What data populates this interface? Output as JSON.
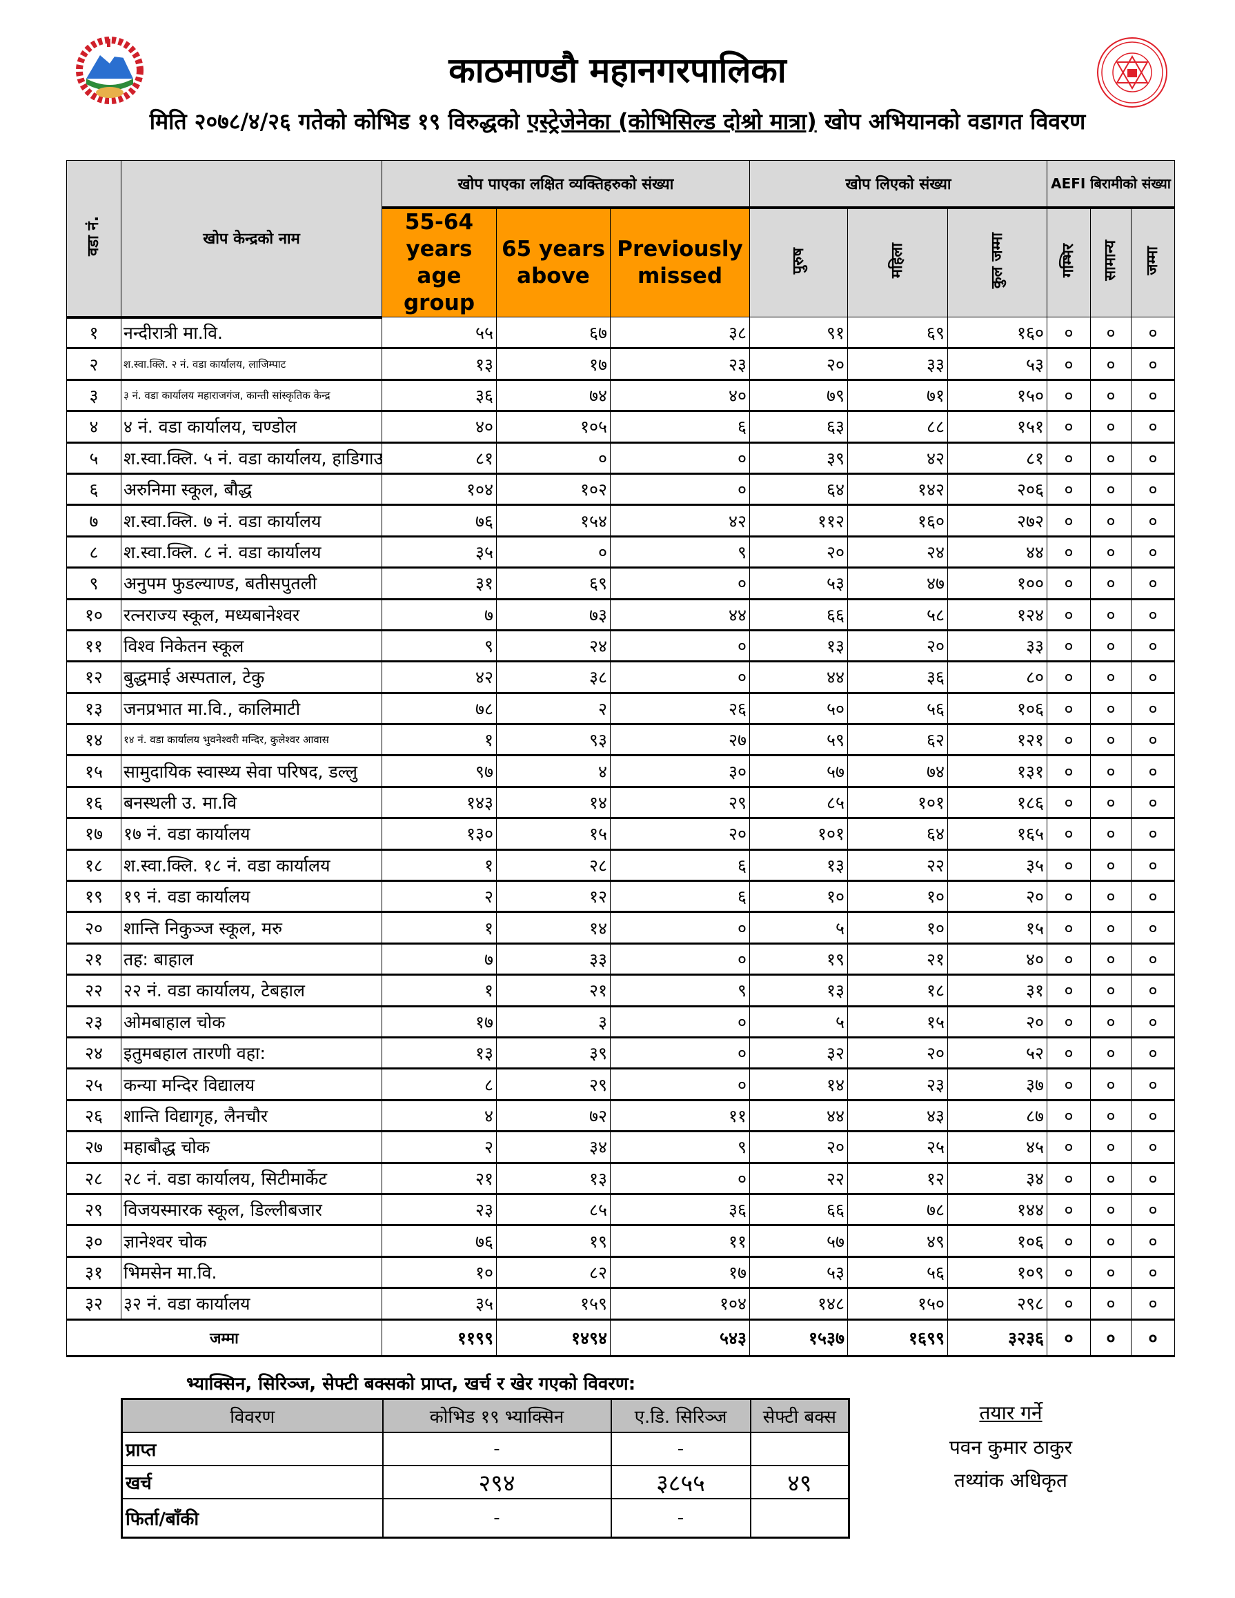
{
  "header": {
    "title": "काठमाण्डौ महानगरपालिका",
    "subtitle_prefix": "मिति २०७८/४/२६ गतेको कोभिड १९ विरुद्धको ",
    "subtitle_underlined": "एस्ट्रेजेनेका (कोभिसिल्ड दोश्रो मात्रा)",
    "subtitle_suffix": " खोप अभियानको वडागत विवरण",
    "logo_left": "Government of Nepal emblem",
    "logo_right": "Kathmandu Metropolitan City seal"
  },
  "colors": {
    "orange_header": "#ff9900",
    "grey_header": "#d9d9d9",
    "logo_red": "#e0202a"
  },
  "table": {
    "col_ward": "वडा नं.",
    "col_center": "खोप केन्द्रको नाम",
    "group_target": "खोप पाएका लक्षित व्यक्तिहरुको संख्या",
    "group_vaccinated": "खोप लिएको संख्या",
    "group_aefi": "AEFI बिरामीको संख्या",
    "target_cols": [
      "55-64 years age group",
      "65 years above",
      "Previously missed"
    ],
    "vacc_cols": [
      "पुरुष",
      "महिला",
      "कुल जम्मा"
    ],
    "aefi_cols": [
      "गम्भिर",
      "सामान्य",
      "जम्मा"
    ],
    "rows": [
      [
        "१",
        "नन्दीरात्री मा.वि.",
        "५५",
        "६७",
        "३८",
        "९१",
        "६९",
        "१६०",
        "०",
        "०",
        "०"
      ],
      [
        "२",
        "श.स्वा.क्लि. २ नं. वडा कार्यालय, लाजिम्पाट",
        "१३",
        "१७",
        "२३",
        "२०",
        "३३",
        "५३",
        "०",
        "०",
        "०"
      ],
      [
        "३",
        "३ नं. वडा कार्यालय महाराजगंज, कान्ती सांस्कृतिक केन्द्र",
        "३६",
        "७४",
        "४०",
        "७९",
        "७१",
        "१५०",
        "०",
        "०",
        "०"
      ],
      [
        "४",
        "४ नं. वडा कार्यालय, चण्डोल",
        "४०",
        "१०५",
        "६",
        "६३",
        "८८",
        "१५१",
        "०",
        "०",
        "०"
      ],
      [
        "५",
        "श.स्वा.क्लि. ५ नं. वडा कार्यालय, हाडिगाउ",
        "८१",
        "०",
        "०",
        "३९",
        "४२",
        "८१",
        "०",
        "०",
        "०"
      ],
      [
        "६",
        "अरुनिमा स्कूल, बौद्ध",
        "१०४",
        "१०२",
        "०",
        "६४",
        "१४२",
        "२०६",
        "०",
        "०",
        "०"
      ],
      [
        "७",
        "श.स्वा.क्लि. ७ नं. वडा कार्यालय",
        "७६",
        "१५४",
        "४२",
        "११२",
        "१६०",
        "२७२",
        "०",
        "०",
        "०"
      ],
      [
        "८",
        "श.स्वा.क्लि. ८ नं. वडा कार्यालय",
        "३५",
        "०",
        "९",
        "२०",
        "२४",
        "४४",
        "०",
        "०",
        "०"
      ],
      [
        "९",
        "अनुपम फुडल्याण्ड, बतीसपुतली",
        "३१",
        "६९",
        "०",
        "५३",
        "४७",
        "१००",
        "०",
        "०",
        "०"
      ],
      [
        "१०",
        "रत्नराज्य स्कूल, मध्यबानेश्वर",
        "७",
        "७३",
        "४४",
        "६६",
        "५८",
        "१२४",
        "०",
        "०",
        "०"
      ],
      [
        "११",
        "विश्व निकेतन स्कूल",
        "९",
        "२४",
        "०",
        "१३",
        "२०",
        "३३",
        "०",
        "०",
        "०"
      ],
      [
        "१२",
        "बुद्धमाई अस्पताल, टेकु",
        "४२",
        "३८",
        "०",
        "४४",
        "३६",
        "८०",
        "०",
        "०",
        "०"
      ],
      [
        "१३",
        "जनप्रभात मा.वि., कालिमाटी",
        "७८",
        "२",
        "२६",
        "५०",
        "५६",
        "१०६",
        "०",
        "०",
        "०"
      ],
      [
        "१४",
        "१४ नं. वडा कार्यालय भुवनेश्वरी मन्दिर, कुलेश्वर आवास",
        "१",
        "९३",
        "२७",
        "५९",
        "६२",
        "१२१",
        "०",
        "०",
        "०"
      ],
      [
        "१५",
        "सामुदायिक स्वास्थ्य सेवा परिषद, डल्लु",
        "९७",
        "४",
        "३०",
        "५७",
        "७४",
        "१३१",
        "०",
        "०",
        "०"
      ],
      [
        "१६",
        "बनस्थली उ. मा.वि",
        "१४३",
        "१४",
        "२९",
        "८५",
        "१०१",
        "१८६",
        "०",
        "०",
        "०"
      ],
      [
        "१७",
        "१७ नं. वडा कार्यालय",
        "१३०",
        "१५",
        "२०",
        "१०१",
        "६४",
        "१६५",
        "०",
        "०",
        "०"
      ],
      [
        "१८",
        "श.स्वा.क्लि. १८ नं. वडा कार्यालय",
        "१",
        "२८",
        "६",
        "१३",
        "२२",
        "३५",
        "०",
        "०",
        "०"
      ],
      [
        "१९",
        "१९ नं. वडा कार्यालय",
        "२",
        "१२",
        "६",
        "१०",
        "१०",
        "२०",
        "०",
        "०",
        "०"
      ],
      [
        "२०",
        "शान्ति निकुञ्ज स्कूल, मरु",
        "१",
        "१४",
        "०",
        "५",
        "१०",
        "१५",
        "०",
        "०",
        "०"
      ],
      [
        "२१",
        "तह: बाहाल",
        "७",
        "३३",
        "०",
        "१९",
        "२१",
        "४०",
        "०",
        "०",
        "०"
      ],
      [
        "२२",
        "२२ नं. वडा कार्यालय, टेबहाल",
        "१",
        "२१",
        "९",
        "१३",
        "१८",
        "३१",
        "०",
        "०",
        "०"
      ],
      [
        "२३",
        "ओमबाहाल चोक",
        "१७",
        "३",
        "०",
        "५",
        "१५",
        "२०",
        "०",
        "०",
        "०"
      ],
      [
        "२४",
        "इतुमबहाल तारणी वहा:",
        "१३",
        "३९",
        "०",
        "३२",
        "२०",
        "५२",
        "०",
        "०",
        "०"
      ],
      [
        "२५",
        "कन्या मन्दिर विद्यालय",
        "८",
        "२९",
        "०",
        "१४",
        "२३",
        "३७",
        "०",
        "०",
        "०"
      ],
      [
        "२६",
        "शान्ति विद्यागृह, लैनचौर",
        "४",
        "७२",
        "११",
        "४४",
        "४३",
        "८७",
        "०",
        "०",
        "०"
      ],
      [
        "२७",
        "महाबौद्ध चोक",
        "२",
        "३४",
        "९",
        "२०",
        "२५",
        "४५",
        "०",
        "०",
        "०"
      ],
      [
        "२८",
        "२८ नं. वडा कार्यालय, सिटीमार्केट",
        "२१",
        "१३",
        "०",
        "२२",
        "१२",
        "३४",
        "०",
        "०",
        "०"
      ],
      [
        "२९",
        "विजयस्मारक स्कूल, डिल्लीबजार",
        "२३",
        "८५",
        "३६",
        "६६",
        "७८",
        "१४४",
        "०",
        "०",
        "०"
      ],
      [
        "३०",
        "ज्ञानेश्वर चोक",
        "७६",
        "१९",
        "११",
        "५७",
        "४९",
        "१०६",
        "०",
        "०",
        "०"
      ],
      [
        "३१",
        "भिमसेन मा.वि.",
        "१०",
        "८२",
        "१७",
        "५३",
        "५६",
        "१०९",
        "०",
        "०",
        "०"
      ],
      [
        "३२",
        "३२ नं. वडा कार्यालय",
        "३५",
        "१५९",
        "१०४",
        "१४८",
        "१५०",
        "२९८",
        "०",
        "०",
        "०"
      ]
    ],
    "total": [
      "जम्मा",
      "११९९",
      "१४९४",
      "५४३",
      "१५३७",
      "१६९९",
      "३२३६",
      "०",
      "०",
      "०"
    ]
  },
  "supplies": {
    "caption": "भ्याक्सिन, सिरिञ्ज, सेफ्टी बक्सको प्राप्त, खर्च र खेर गएको विवरण:",
    "headers": [
      "विवरण",
      "कोभिड १९ भ्याक्सिन",
      "ए.डि. सिरिञ्ज",
      "सेफ्टी बक्स"
    ],
    "rows": [
      [
        "प्राप्त",
        "-",
        "-",
        ""
      ],
      [
        "खर्च",
        "२९४",
        "३८५५",
        "४९"
      ],
      [
        "फिर्ता/बाँकी",
        "-",
        "-",
        ""
      ]
    ]
  },
  "signature": {
    "heading": "तयार गर्ने",
    "name": "पवन कुमार ठाकुर",
    "designation": "तथ्यांक अधिकृत"
  }
}
